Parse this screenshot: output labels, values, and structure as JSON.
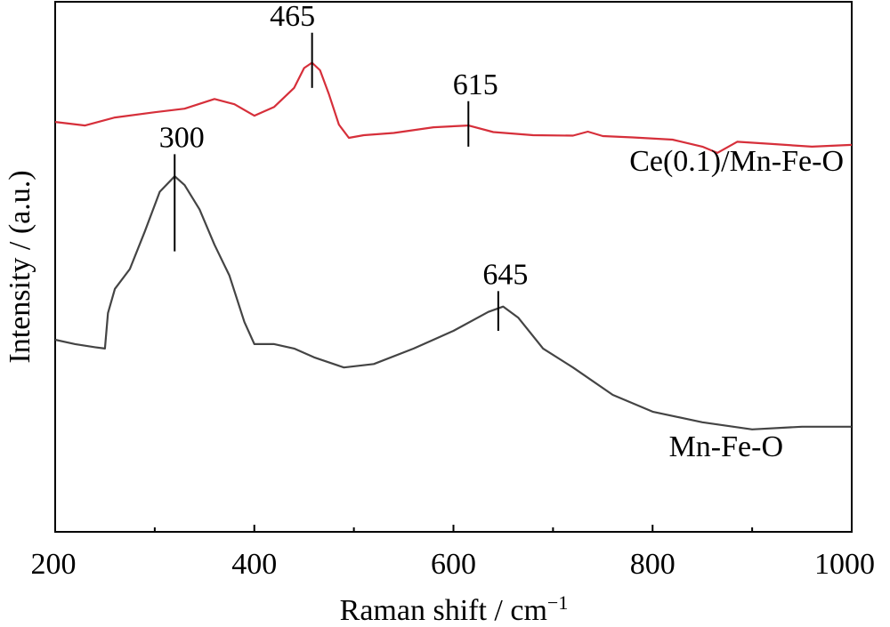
{
  "chart_data": {
    "type": "line",
    "xlabel": "Raman shift / cm",
    "xlabel_sup": "−1",
    "ylabel": "Intensity / (a.u.)",
    "xlim": [
      200,
      1000
    ],
    "ylim": [
      0,
      12
    ],
    "x_ticks": [
      "200",
      "400",
      "600",
      "800",
      "1000"
    ],
    "y_ticks_shown": false,
    "grid": false,
    "series": [
      {
        "name": "Ce(0.1)/Mn-Fe-O",
        "color": "#d62f3a",
        "points": [
          [
            200,
            9.28
          ],
          [
            230,
            9.2
          ],
          [
            260,
            9.38
          ],
          [
            300,
            9.5
          ],
          [
            330,
            9.58
          ],
          [
            360,
            9.8
          ],
          [
            380,
            9.68
          ],
          [
            400,
            9.42
          ],
          [
            420,
            9.62
          ],
          [
            440,
            10.05
          ],
          [
            450,
            10.5
          ],
          [
            458,
            10.62
          ],
          [
            466,
            10.45
          ],
          [
            475,
            9.9
          ],
          [
            485,
            9.22
          ],
          [
            495,
            8.92
          ],
          [
            510,
            8.98
          ],
          [
            540,
            9.03
          ],
          [
            580,
            9.16
          ],
          [
            615,
            9.2
          ],
          [
            640,
            9.05
          ],
          [
            680,
            8.98
          ],
          [
            720,
            8.97
          ],
          [
            735,
            9.06
          ],
          [
            750,
            8.96
          ],
          [
            780,
            8.93
          ],
          [
            820,
            8.88
          ],
          [
            850,
            8.72
          ],
          [
            865,
            8.58
          ],
          [
            885,
            8.83
          ],
          [
            920,
            8.78
          ],
          [
            960,
            8.72
          ],
          [
            1000,
            8.76
          ]
        ]
      },
      {
        "name": "Mn-Fe-O",
        "color": "#444444",
        "points": [
          [
            200,
            4.35
          ],
          [
            220,
            4.25
          ],
          [
            240,
            4.18
          ],
          [
            250,
            4.15
          ],
          [
            253,
            4.95
          ],
          [
            260,
            5.5
          ],
          [
            275,
            5.95
          ],
          [
            290,
            6.8
          ],
          [
            305,
            7.7
          ],
          [
            320,
            8.05
          ],
          [
            330,
            7.85
          ],
          [
            345,
            7.3
          ],
          [
            360,
            6.5
          ],
          [
            375,
            5.8
          ],
          [
            390,
            4.75
          ],
          [
            400,
            4.25
          ],
          [
            420,
            4.25
          ],
          [
            440,
            4.15
          ],
          [
            460,
            3.95
          ],
          [
            490,
            3.72
          ],
          [
            520,
            3.8
          ],
          [
            560,
            4.15
          ],
          [
            600,
            4.55
          ],
          [
            635,
            4.98
          ],
          [
            650,
            5.1
          ],
          [
            665,
            4.85
          ],
          [
            690,
            4.15
          ],
          [
            720,
            3.72
          ],
          [
            760,
            3.1
          ],
          [
            800,
            2.72
          ],
          [
            850,
            2.48
          ],
          [
            900,
            2.32
          ],
          [
            950,
            2.38
          ],
          [
            1000,
            2.38
          ]
        ]
      }
    ],
    "annotations": [
      {
        "text": "465",
        "x": 458,
        "y_low": 10.05,
        "y_high": 11.3
      },
      {
        "text": "615",
        "x": 615,
        "y_low": 8.72,
        "y_high": 9.75
      },
      {
        "text": "300",
        "x": 320,
        "y_low": 6.35,
        "y_high": 8.55
      },
      {
        "text": "645",
        "x": 645,
        "y_low": 4.55,
        "y_high": 5.45
      }
    ]
  }
}
